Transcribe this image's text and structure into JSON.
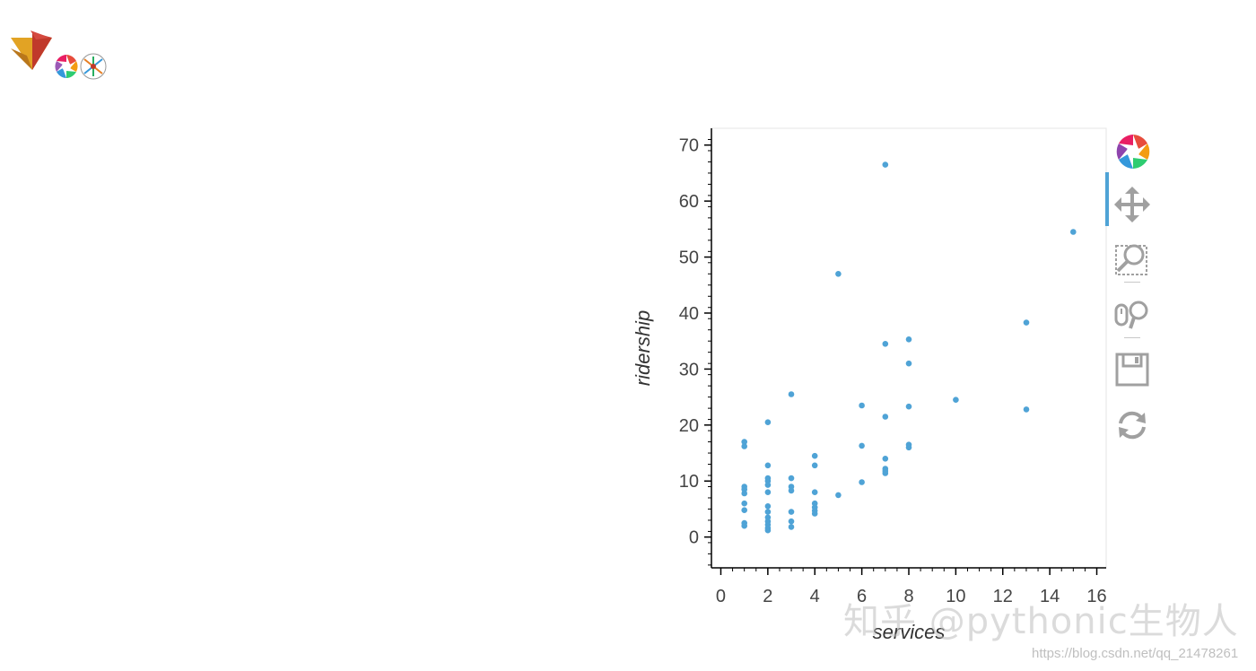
{
  "chart_data": {
    "type": "scatter",
    "title": "",
    "xlabel": "services",
    "ylabel": "ridership",
    "xlim": [
      -0.4,
      16.4
    ],
    "ylim": [
      -5.5,
      73
    ],
    "xticks": [
      0,
      2,
      4,
      6,
      8,
      10,
      12,
      14,
      16
    ],
    "yticks": [
      0,
      10,
      20,
      30,
      40,
      50,
      60,
      70
    ],
    "grid": false,
    "legend": "none",
    "point_color": "#4fa3d6",
    "points": [
      [
        1,
        17
      ],
      [
        1,
        16.2
      ],
      [
        1,
        9
      ],
      [
        1,
        8.5
      ],
      [
        1,
        7.8
      ],
      [
        1,
        6
      ],
      [
        1,
        4.8
      ],
      [
        1,
        2.5
      ],
      [
        1,
        2
      ],
      [
        2,
        20.5
      ],
      [
        2,
        12.8
      ],
      [
        2,
        10.5
      ],
      [
        2,
        10
      ],
      [
        2,
        9.3
      ],
      [
        2,
        8
      ],
      [
        2,
        5.5
      ],
      [
        2,
        4.5
      ],
      [
        2,
        3.5
      ],
      [
        2,
        2.8
      ],
      [
        2,
        2.2
      ],
      [
        2,
        1.6
      ],
      [
        2,
        1.2
      ],
      [
        3,
        25.5
      ],
      [
        3,
        10.5
      ],
      [
        3,
        9
      ],
      [
        3,
        8.3
      ],
      [
        3,
        4.5
      ],
      [
        3,
        2.8
      ],
      [
        3,
        1.8
      ],
      [
        4,
        14.5
      ],
      [
        4,
        12.8
      ],
      [
        4,
        8
      ],
      [
        4,
        6
      ],
      [
        4,
        5.3
      ],
      [
        4,
        4.7
      ],
      [
        4,
        4.2
      ],
      [
        5,
        47
      ],
      [
        5,
        7.5
      ],
      [
        6,
        23.5
      ],
      [
        6,
        16.3
      ],
      [
        6,
        9.8
      ],
      [
        7,
        66.5
      ],
      [
        7,
        34.5
      ],
      [
        7,
        21.5
      ],
      [
        7,
        14
      ],
      [
        7,
        12.2
      ],
      [
        7,
        11.8
      ],
      [
        7,
        11.4
      ],
      [
        8,
        35.3
      ],
      [
        8,
        31
      ],
      [
        8,
        23.3
      ],
      [
        8,
        16.5
      ],
      [
        8,
        16
      ],
      [
        10,
        24.5
      ],
      [
        13,
        38.3
      ],
      [
        13,
        22.8
      ],
      [
        15,
        54.5
      ]
    ]
  },
  "toolbar": {
    "tools": [
      {
        "name": "bokeh-logo",
        "icon": "bokeh-logo-icon"
      },
      {
        "name": "pan",
        "icon": "pan-icon",
        "active": true
      },
      {
        "name": "box-zoom",
        "icon": "box-zoom-icon"
      },
      {
        "name": "wheel-zoom",
        "icon": "wheel-zoom-icon"
      },
      {
        "name": "save",
        "icon": "save-icon"
      },
      {
        "name": "reset",
        "icon": "reset-icon"
      }
    ],
    "active_color": "#4fa3d6"
  },
  "watermark": {
    "main": "知乎 @pythonic生物人",
    "url": "https://blog.csdn.net/qq_21478261"
  }
}
